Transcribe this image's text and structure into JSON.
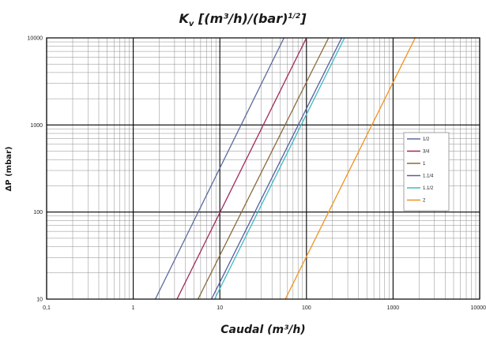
{
  "chart_data": {
    "type": "line",
    "title_main": "K",
    "title_sub": "v",
    "title_rest": " [(m³/h)/(bar)",
    "title_sup": "1/2",
    "title_end": "]",
    "xlabel": "Caudal (m³/h)",
    "ylabel": "ΔP (mbar)",
    "xscale": "log",
    "yscale": "log",
    "xlim": [
      0.1,
      10000
    ],
    "ylim": [
      10,
      10000
    ],
    "xticks": [
      0.1,
      1,
      10,
      100,
      1000,
      10000
    ],
    "xtick_labels": [
      "0,1",
      "1",
      "10",
      "100",
      "1000",
      "10000"
    ],
    "yticks": [
      10,
      100,
      1000,
      10000
    ],
    "ytick_labels": [
      "10",
      "100",
      "1000",
      "10000"
    ],
    "grid": true,
    "legend_position": "right",
    "series": [
      {
        "name": "1/2",
        "color": "#5a6a9e",
        "points": [
          [
            1.8,
            10
          ],
          [
            55,
            10000
          ]
        ]
      },
      {
        "name": "3/4",
        "color": "#a0285a",
        "points": [
          [
            3.2,
            10
          ],
          [
            100,
            10000
          ]
        ]
      },
      {
        "name": "1",
        "color": "#8a6a3a",
        "points": [
          [
            5.6,
            10
          ],
          [
            180,
            10000
          ]
        ]
      },
      {
        "name": "1.1/4",
        "color": "#5a5aa0",
        "points": [
          [
            8.0,
            10
          ],
          [
            255,
            10000
          ]
        ]
      },
      {
        "name": "1.1/2",
        "color": "#3cbcbc",
        "points": [
          [
            8.7,
            10
          ],
          [
            275,
            10000
          ]
        ]
      },
      {
        "name": "2",
        "color": "#f0921e",
        "points": [
          [
            57,
            10
          ],
          [
            1800,
            10000
          ]
        ]
      }
    ]
  }
}
